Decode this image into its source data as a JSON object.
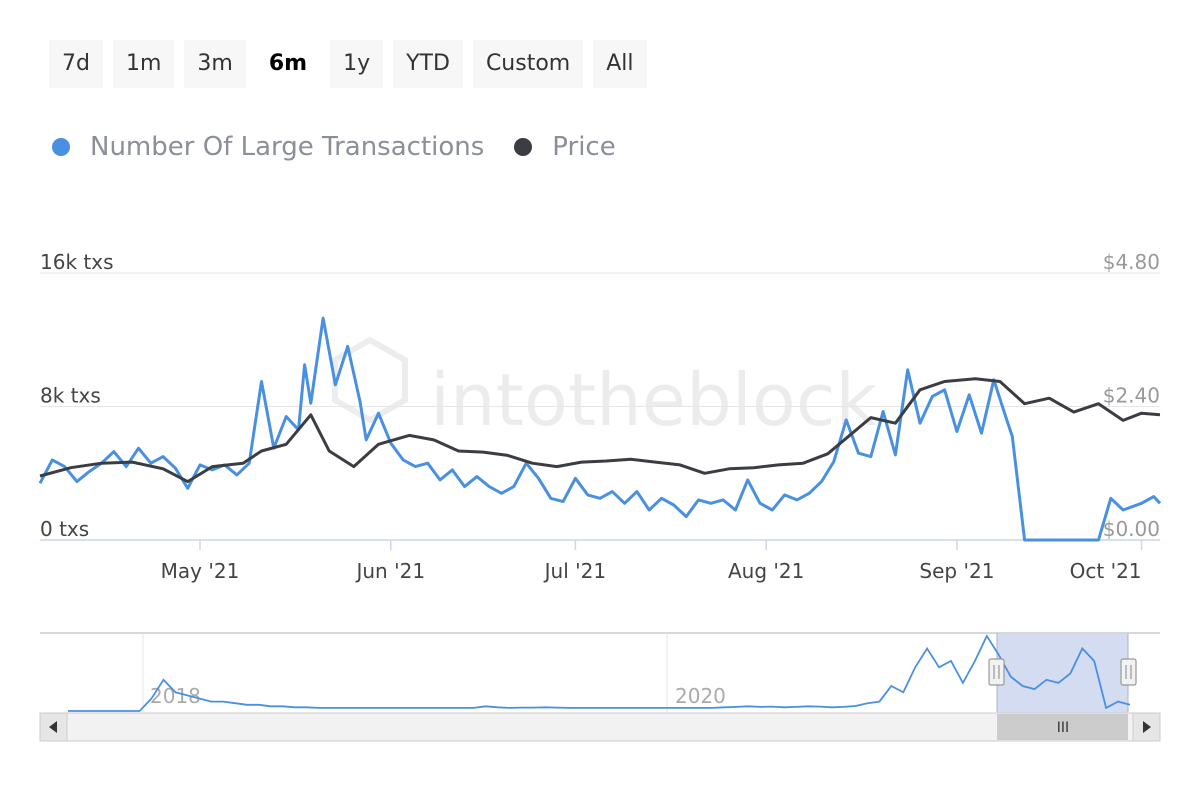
{
  "range_selector": {
    "buttons": [
      "7d",
      "1m",
      "3m",
      "6m",
      "1y",
      "YTD",
      "Custom",
      "All"
    ],
    "selected": "6m"
  },
  "watermark": "intotheblock",
  "colors": {
    "large_tx": "#4a90e2",
    "price": "#3a3d42",
    "grid": "#e6e6e6",
    "axis_text": "#444444",
    "right_axis_text": "#999999",
    "navigator_mask": "#ccd6ee"
  },
  "chart_data": {
    "type": "line",
    "x_tick_labels": [
      "May '21",
      "Jun '21",
      "Jul '21",
      "Aug '21",
      "Sep '21",
      "Oct '21"
    ],
    "x_range": [
      "2021-04-05",
      "2021-10-04"
    ],
    "y_left": {
      "ticks": [
        "0 txs",
        "8k txs",
        "16k txs"
      ],
      "range": [
        0,
        16000
      ]
    },
    "y_right": {
      "ticks": [
        "$0.00",
        "$2.40",
        "$4.80"
      ],
      "range": [
        0,
        4.8
      ]
    },
    "grid": true,
    "legend_position": "top-left",
    "series": [
      {
        "name": "Number Of Large Transactions",
        "axis": "left",
        "color": "#4a90e2",
        "points": [
          [
            "2021-04-05",
            3400
          ],
          [
            "2021-04-07",
            4800
          ],
          [
            "2021-04-09",
            4400
          ],
          [
            "2021-04-11",
            3500
          ],
          [
            "2021-04-13",
            4100
          ],
          [
            "2021-04-15",
            4600
          ],
          [
            "2021-04-17",
            5300
          ],
          [
            "2021-04-19",
            4400
          ],
          [
            "2021-04-21",
            5500
          ],
          [
            "2021-04-23",
            4600
          ],
          [
            "2021-04-25",
            5000
          ],
          [
            "2021-04-27",
            4300
          ],
          [
            "2021-04-29",
            3100
          ],
          [
            "2021-05-01",
            4500
          ],
          [
            "2021-05-03",
            4200
          ],
          [
            "2021-05-05",
            4500
          ],
          [
            "2021-05-07",
            3900
          ],
          [
            "2021-05-09",
            4600
          ],
          [
            "2021-05-11",
            9500
          ],
          [
            "2021-05-13",
            5500
          ],
          [
            "2021-05-15",
            7400
          ],
          [
            "2021-05-17",
            6600
          ],
          [
            "2021-05-18",
            10500
          ],
          [
            "2021-05-19",
            8200
          ],
          [
            "2021-05-21",
            13300
          ],
          [
            "2021-05-23",
            9300
          ],
          [
            "2021-05-25",
            11600
          ],
          [
            "2021-05-27",
            8300
          ],
          [
            "2021-05-28",
            6000
          ],
          [
            "2021-05-30",
            7600
          ],
          [
            "2021-06-01",
            5800
          ],
          [
            "2021-06-03",
            4800
          ],
          [
            "2021-06-05",
            4400
          ],
          [
            "2021-06-07",
            4600
          ],
          [
            "2021-06-09",
            3600
          ],
          [
            "2021-06-11",
            4200
          ],
          [
            "2021-06-13",
            3200
          ],
          [
            "2021-06-15",
            3800
          ],
          [
            "2021-06-17",
            3200
          ],
          [
            "2021-06-19",
            2800
          ],
          [
            "2021-06-21",
            3200
          ],
          [
            "2021-06-23",
            4600
          ],
          [
            "2021-06-25",
            3700
          ],
          [
            "2021-06-27",
            2500
          ],
          [
            "2021-06-29",
            2300
          ],
          [
            "2021-07-01",
            3700
          ],
          [
            "2021-07-03",
            2700
          ],
          [
            "2021-07-05",
            2500
          ],
          [
            "2021-07-07",
            2900
          ],
          [
            "2021-07-09",
            2200
          ],
          [
            "2021-07-11",
            2900
          ],
          [
            "2021-07-13",
            1800
          ],
          [
            "2021-07-15",
            2500
          ],
          [
            "2021-07-17",
            2100
          ],
          [
            "2021-07-19",
            1400
          ],
          [
            "2021-07-21",
            2400
          ],
          [
            "2021-07-23",
            2200
          ],
          [
            "2021-07-25",
            2400
          ],
          [
            "2021-07-27",
            1800
          ],
          [
            "2021-07-29",
            3600
          ],
          [
            "2021-07-31",
            2200
          ],
          [
            "2021-08-02",
            1800
          ],
          [
            "2021-08-04",
            2700
          ],
          [
            "2021-08-06",
            2400
          ],
          [
            "2021-08-08",
            2800
          ],
          [
            "2021-08-10",
            3500
          ],
          [
            "2021-08-12",
            4700
          ],
          [
            "2021-08-14",
            7200
          ],
          [
            "2021-08-16",
            5200
          ],
          [
            "2021-08-18",
            5000
          ],
          [
            "2021-08-20",
            7700
          ],
          [
            "2021-08-22",
            5100
          ],
          [
            "2021-08-24",
            10200
          ],
          [
            "2021-08-26",
            7000
          ],
          [
            "2021-08-28",
            8600
          ],
          [
            "2021-08-30",
            9000
          ],
          [
            "2021-09-01",
            6500
          ],
          [
            "2021-09-03",
            8700
          ],
          [
            "2021-09-05",
            6400
          ],
          [
            "2021-09-07",
            9600
          ],
          [
            "2021-09-09",
            7300
          ],
          [
            "2021-09-10",
            6200
          ],
          [
            "2021-09-12",
            0
          ],
          [
            "2021-09-24",
            0
          ],
          [
            "2021-09-26",
            2500
          ],
          [
            "2021-09-28",
            1800
          ],
          [
            "2021-10-01",
            2200
          ],
          [
            "2021-10-03",
            2600
          ],
          [
            "2021-10-04",
            2200
          ]
        ]
      },
      {
        "name": "Price",
        "axis": "right",
        "color": "#3a3d42",
        "points": [
          [
            "2021-04-05",
            1.15
          ],
          [
            "2021-04-10",
            1.3
          ],
          [
            "2021-04-15",
            1.38
          ],
          [
            "2021-04-20",
            1.4
          ],
          [
            "2021-04-25",
            1.28
          ],
          [
            "2021-04-29",
            1.05
          ],
          [
            "2021-05-03",
            1.32
          ],
          [
            "2021-05-08",
            1.38
          ],
          [
            "2021-05-11",
            1.6
          ],
          [
            "2021-05-15",
            1.72
          ],
          [
            "2021-05-19",
            2.25
          ],
          [
            "2021-05-22",
            1.6
          ],
          [
            "2021-05-26",
            1.32
          ],
          [
            "2021-05-30",
            1.72
          ],
          [
            "2021-06-04",
            1.88
          ],
          [
            "2021-06-08",
            1.8
          ],
          [
            "2021-06-12",
            1.6
          ],
          [
            "2021-06-16",
            1.58
          ],
          [
            "2021-06-20",
            1.52
          ],
          [
            "2021-06-24",
            1.38
          ],
          [
            "2021-06-28",
            1.32
          ],
          [
            "2021-07-02",
            1.4
          ],
          [
            "2021-07-06",
            1.42
          ],
          [
            "2021-07-10",
            1.45
          ],
          [
            "2021-07-14",
            1.4
          ],
          [
            "2021-07-18",
            1.35
          ],
          [
            "2021-07-22",
            1.2
          ],
          [
            "2021-07-26",
            1.28
          ],
          [
            "2021-07-30",
            1.3
          ],
          [
            "2021-08-03",
            1.35
          ],
          [
            "2021-08-07",
            1.38
          ],
          [
            "2021-08-11",
            1.55
          ],
          [
            "2021-08-15",
            1.92
          ],
          [
            "2021-08-18",
            2.2
          ],
          [
            "2021-08-22",
            2.1
          ],
          [
            "2021-08-26",
            2.7
          ],
          [
            "2021-08-30",
            2.85
          ],
          [
            "2021-09-04",
            2.9
          ],
          [
            "2021-09-08",
            2.85
          ],
          [
            "2021-09-12",
            2.45
          ],
          [
            "2021-09-16",
            2.55
          ],
          [
            "2021-09-20",
            2.3
          ],
          [
            "2021-09-24",
            2.45
          ],
          [
            "2021-09-28",
            2.15
          ],
          [
            "2021-10-01",
            2.28
          ],
          [
            "2021-10-04",
            2.25
          ]
        ]
      }
    ]
  },
  "navigator": {
    "year_labels": [
      "2018",
      "2020"
    ],
    "series_values": [
      0,
      0,
      0,
      0,
      0,
      0,
      0,
      4,
      10,
      6,
      5,
      4,
      3,
      3,
      2.5,
      2,
      2,
      1.5,
      1.5,
      1.2,
      1.2,
      1,
      1,
      1,
      1,
      1,
      1,
      1,
      1,
      1,
      1,
      1,
      1,
      1,
      1,
      1.5,
      1.2,
      1,
      1.1,
      1.1,
      1.2,
      1.1,
      1,
      1,
      1,
      1,
      1,
      1,
      1,
      1,
      1,
      1,
      1,
      1,
      1,
      1.2,
      1.3,
      1.5,
      1.3,
      1.4,
      1.2,
      1.3,
      1.5,
      1.4,
      1.2,
      1.3,
      1.6,
      2.5,
      3,
      8,
      6,
      14,
      20,
      14,
      16,
      9,
      16,
      24,
      18,
      11,
      8,
      7,
      10,
      9,
      12,
      20,
      16,
      1,
      3,
      2
    ],
    "selected_range": [
      "2021-04-05",
      "2021-10-04"
    ],
    "scrollbar_grip": "III"
  }
}
